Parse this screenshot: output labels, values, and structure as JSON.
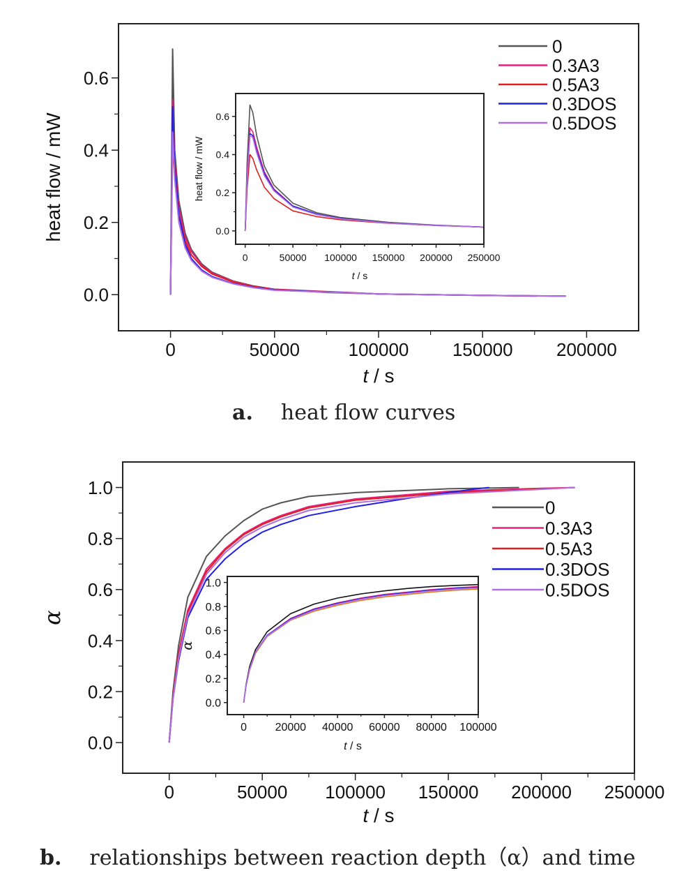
{
  "captions": {
    "a_label": "a.",
    "a_text": "heat flow curves",
    "b_label": "b.",
    "b_text": "relationships between reaction depth（α）and time"
  },
  "chart_data": [
    {
      "id": "a-main",
      "type": "line",
      "xlabel_italic": "t",
      "xlabel_rest": " / s",
      "ylabel": "heat flow / mW",
      "xlim": [
        -25000,
        225000
      ],
      "ylim": [
        -0.1,
        0.75
      ],
      "xticks": [
        0,
        50000,
        100000,
        150000,
        200000
      ],
      "xtick_labels": [
        "0",
        "50000",
        "100000",
        "150000",
        "200000"
      ],
      "yticks": [
        0,
        0.2,
        0.4,
        0.6
      ],
      "ytick_labels": [
        "0.0",
        "0.2",
        "0.4",
        "0.6"
      ],
      "grid": false,
      "legend": "top-right",
      "series": [
        {
          "name": "0",
          "color": "#555555",
          "x": [
            0,
            1000,
            2000,
            4000,
            7000,
            10000,
            15000,
            20000,
            30000,
            40000,
            50000,
            75000,
            100000,
            150000,
            176000
          ],
          "y": [
            0,
            0.68,
            0.4,
            0.26,
            0.17,
            0.125,
            0.085,
            0.062,
            0.038,
            0.024,
            0.015,
            0.006,
            0.002,
            -0.002,
            -0.004
          ]
        },
        {
          "name": "0.3A3",
          "color": "#e0207a",
          "x": [
            0,
            1000,
            2000,
            4000,
            7000,
            10000,
            15000,
            20000,
            30000,
            40000,
            50000,
            100000,
            150000,
            185000
          ],
          "y": [
            0,
            0.54,
            0.37,
            0.24,
            0.16,
            0.12,
            0.082,
            0.06,
            0.037,
            0.023,
            0.015,
            0.002,
            -0.002,
            -0.004
          ]
        },
        {
          "name": "0.5A3",
          "color": "#e02020",
          "x": [
            0,
            1000,
            2000,
            4000,
            7000,
            10000,
            15000,
            20000,
            30000,
            40000,
            50000,
            100000,
            150000,
            190000
          ],
          "y": [
            0,
            0.41,
            0.33,
            0.22,
            0.15,
            0.11,
            0.078,
            0.057,
            0.035,
            0.022,
            0.014,
            0.002,
            -0.002,
            -0.004
          ]
        },
        {
          "name": "0.3DOS",
          "color": "#2020e0",
          "x": [
            0,
            1000,
            2000,
            4000,
            7000,
            10000,
            15000,
            20000,
            30000,
            40000,
            50000,
            100000,
            150000,
            190000
          ],
          "y": [
            0,
            0.52,
            0.35,
            0.22,
            0.14,
            0.1,
            0.068,
            0.05,
            0.031,
            0.02,
            0.013,
            0.002,
            -0.002,
            -0.004
          ]
        },
        {
          "name": "0.5DOS",
          "color": "#b070e0",
          "x": [
            0,
            1000,
            2000,
            4000,
            7000,
            10000,
            15000,
            20000,
            30000,
            40000,
            50000,
            100000,
            150000,
            190000
          ],
          "y": [
            0,
            0.45,
            0.32,
            0.2,
            0.13,
            0.095,
            0.065,
            0.048,
            0.03,
            0.019,
            0.012,
            0.002,
            -0.002,
            -0.004
          ]
        }
      ]
    },
    {
      "id": "a-inset",
      "type": "line",
      "xlabel_italic": "t",
      "xlabel_rest": " / s",
      "ylabel": "heat flow / mW",
      "xlim": [
        -10000,
        250000
      ],
      "ylim": [
        -0.07,
        0.72
      ],
      "xticks": [
        0,
        50000,
        100000,
        150000,
        200000,
        250000
      ],
      "xtick_labels": [
        "0",
        "50000",
        "100000",
        "150000",
        "200000",
        "250000"
      ],
      "yticks": [
        0,
        0.2,
        0.4,
        0.6
      ],
      "ytick_labels": [
        "0.0",
        "0.2",
        "0.4",
        "0.6"
      ],
      "grid": false,
      "series": [
        {
          "name": "0",
          "color": "#555555",
          "x": [
            0,
            2000,
            5000,
            8000,
            12000,
            20000,
            30000,
            50000,
            75000,
            100000,
            150000,
            200000,
            250000
          ],
          "y": [
            0,
            0.35,
            0.66,
            0.62,
            0.5,
            0.34,
            0.24,
            0.145,
            0.095,
            0.07,
            0.045,
            0.03,
            0.02
          ]
        },
        {
          "name": "0.3A3",
          "color": "#e0207a",
          "x": [
            0,
            2000,
            5000,
            8000,
            12000,
            20000,
            30000,
            50000,
            75000,
            100000,
            150000,
            200000,
            250000
          ],
          "y": [
            0,
            0.3,
            0.54,
            0.52,
            0.44,
            0.31,
            0.22,
            0.13,
            0.088,
            0.065,
            0.042,
            0.029,
            0.02
          ]
        },
        {
          "name": "0.5A3",
          "color": "#e02020",
          "x": [
            0,
            2000,
            5000,
            8000,
            12000,
            20000,
            30000,
            50000,
            75000,
            100000,
            150000,
            200000,
            250000
          ],
          "y": [
            0,
            0.22,
            0.4,
            0.38,
            0.32,
            0.23,
            0.17,
            0.105,
            0.075,
            0.058,
            0.04,
            0.028,
            0.02
          ]
        },
        {
          "name": "0.3DOS",
          "color": "#2020e0",
          "x": [
            0,
            2000,
            5000,
            8000,
            12000,
            20000,
            30000,
            50000,
            75000,
            100000,
            150000,
            200000,
            250000
          ],
          "y": [
            0,
            0.28,
            0.51,
            0.5,
            0.42,
            0.3,
            0.215,
            0.13,
            0.088,
            0.065,
            0.042,
            0.029,
            0.02
          ]
        },
        {
          "name": "0.5DOS",
          "color": "#b070e0",
          "x": [
            0,
            2000,
            5000,
            8000,
            12000,
            20000,
            30000,
            50000,
            75000,
            100000,
            150000,
            200000,
            250000
          ],
          "y": [
            0,
            0.27,
            0.5,
            0.49,
            0.41,
            0.29,
            0.21,
            0.125,
            0.085,
            0.063,
            0.041,
            0.028,
            0.02
          ]
        }
      ]
    },
    {
      "id": "b-main",
      "type": "line",
      "xlabel_italic": "t",
      "xlabel_rest": " / s",
      "ylabel": "α",
      "xlim": [
        -25000,
        250000
      ],
      "ylim": [
        -0.12,
        1.1
      ],
      "xticks": [
        0,
        50000,
        100000,
        150000,
        200000,
        250000
      ],
      "xtick_labels": [
        "0",
        "50000",
        "100000",
        "150000",
        "200000",
        "250000"
      ],
      "yticks": [
        0,
        0.2,
        0.4,
        0.6,
        0.8,
        1.0
      ],
      "ytick_labels": [
        "0.0",
        "0.2",
        "0.4",
        "0.6",
        "0.8",
        "1.0"
      ],
      "grid": false,
      "legend": "right",
      "series": [
        {
          "name": "0",
          "color": "#555555",
          "x": [
            0,
            2000,
            5000,
            10000,
            20000,
            30000,
            40000,
            50000,
            60000,
            75000,
            100000,
            150000,
            188000
          ],
          "y": [
            0,
            0.2,
            0.38,
            0.57,
            0.73,
            0.81,
            0.87,
            0.915,
            0.94,
            0.965,
            0.98,
            0.995,
            1.0
          ]
        },
        {
          "name": "0.3A3",
          "color": "#e0207a",
          "x": [
            0,
            2000,
            5000,
            10000,
            20000,
            30000,
            40000,
            50000,
            60000,
            75000,
            100000,
            150000,
            200000,
            218000
          ],
          "y": [
            0,
            0.18,
            0.35,
            0.52,
            0.68,
            0.76,
            0.82,
            0.86,
            0.89,
            0.925,
            0.955,
            0.985,
            0.997,
            1.0
          ]
        },
        {
          "name": "0.5A3",
          "color": "#e02020",
          "x": [
            0,
            2000,
            5000,
            10000,
            20000,
            30000,
            40000,
            50000,
            60000,
            75000,
            100000,
            150000,
            200000,
            218000
          ],
          "y": [
            0,
            0.18,
            0.34,
            0.51,
            0.67,
            0.755,
            0.815,
            0.855,
            0.885,
            0.92,
            0.95,
            0.98,
            0.995,
            1.0
          ]
        },
        {
          "name": "0.3DOS",
          "color": "#2020e0",
          "x": [
            0,
            2000,
            5000,
            10000,
            20000,
            30000,
            40000,
            50000,
            60000,
            75000,
            100000,
            130000,
            150000,
            165000,
            172000
          ],
          "y": [
            0,
            0.17,
            0.32,
            0.49,
            0.64,
            0.72,
            0.78,
            0.825,
            0.855,
            0.89,
            0.925,
            0.96,
            0.98,
            0.995,
            1.0
          ]
        },
        {
          "name": "0.5DOS",
          "color": "#b070e0",
          "x": [
            0,
            2000,
            5000,
            10000,
            20000,
            30000,
            40000,
            50000,
            60000,
            75000,
            100000,
            150000,
            200000,
            218000
          ],
          "y": [
            0,
            0.17,
            0.33,
            0.5,
            0.66,
            0.745,
            0.805,
            0.845,
            0.875,
            0.91,
            0.94,
            0.975,
            0.993,
            1.0
          ]
        }
      ]
    },
    {
      "id": "b-inset",
      "type": "line",
      "xlabel_italic": "t",
      "xlabel_rest": " / s",
      "ylabel": "α",
      "xlim": [
        -7000,
        100000
      ],
      "ylim": [
        -0.1,
        1.05
      ],
      "xticks": [
        0,
        20000,
        40000,
        60000,
        80000,
        100000
      ],
      "xtick_labels": [
        "0",
        "20000",
        "40000",
        "60000",
        "80000",
        "100000"
      ],
      "yticks": [
        0,
        0.2,
        0.4,
        0.6,
        0.8,
        1.0
      ],
      "ytick_labels": [
        "0.0",
        "0.2",
        "0.4",
        "0.6",
        "0.8",
        "1.0"
      ],
      "grid": false,
      "series": [
        {
          "name": "0",
          "color": "#111111",
          "x": [
            0,
            1000,
            2500,
            5000,
            10000,
            20000,
            30000,
            40000,
            50000,
            60000,
            70000,
            80000,
            90000,
            100000
          ],
          "y": [
            0,
            0.15,
            0.3,
            0.44,
            0.59,
            0.74,
            0.82,
            0.87,
            0.905,
            0.93,
            0.95,
            0.965,
            0.975,
            0.982
          ]
        },
        {
          "name": "0.3A3",
          "color": "#e0207a",
          "x": [
            0,
            1000,
            2500,
            5000,
            10000,
            20000,
            30000,
            40000,
            50000,
            60000,
            70000,
            80000,
            90000,
            100000
          ],
          "y": [
            0,
            0.14,
            0.28,
            0.42,
            0.56,
            0.7,
            0.78,
            0.83,
            0.87,
            0.9,
            0.92,
            0.94,
            0.955,
            0.965
          ]
        },
        {
          "name": "0.5A3",
          "color": "#e08020",
          "x": [
            0,
            1000,
            2500,
            5000,
            10000,
            20000,
            30000,
            40000,
            50000,
            60000,
            70000,
            80000,
            90000,
            100000
          ],
          "y": [
            0,
            0.14,
            0.27,
            0.41,
            0.55,
            0.685,
            0.76,
            0.81,
            0.85,
            0.88,
            0.9,
            0.92,
            0.935,
            0.945
          ]
        },
        {
          "name": "0.3DOS",
          "color": "#2020e0",
          "x": [
            0,
            1000,
            2500,
            5000,
            10000,
            20000,
            30000,
            40000,
            50000,
            60000,
            70000,
            80000,
            90000,
            100000
          ],
          "y": [
            0,
            0.14,
            0.28,
            0.42,
            0.56,
            0.695,
            0.775,
            0.825,
            0.865,
            0.895,
            0.915,
            0.935,
            0.95,
            0.96
          ]
        },
        {
          "name": "0.5DOS",
          "color": "#b070e0",
          "x": [
            0,
            1000,
            2500,
            5000,
            10000,
            20000,
            30000,
            40000,
            50000,
            60000,
            70000,
            80000,
            90000,
            100000
          ],
          "y": [
            0,
            0.14,
            0.28,
            0.42,
            0.555,
            0.69,
            0.77,
            0.82,
            0.86,
            0.89,
            0.91,
            0.93,
            0.945,
            0.955
          ]
        }
      ]
    }
  ]
}
